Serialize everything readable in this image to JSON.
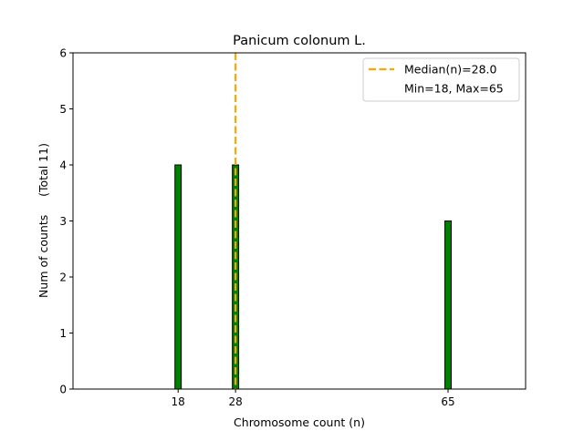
{
  "chart_data": {
    "type": "bar",
    "title": "Panicum colonum L.",
    "xlabel": "Chromosome count (n)",
    "ylabel": "Num of counts     (Total 11)",
    "x": [
      18,
      28,
      65
    ],
    "values": [
      4,
      4,
      3
    ],
    "xticks": [
      "18",
      "28",
      "65"
    ],
    "yticks": [
      "0",
      "1",
      "2",
      "3",
      "4",
      "5",
      "6"
    ],
    "xlim": [
      -0.3,
      78.5
    ],
    "ylim": [
      0,
      6
    ],
    "bar_width": 1.1,
    "median": 28.0,
    "legend": {
      "placement": "top-right",
      "entries": [
        "Median(n)=28.0",
        "Min=18, Max=65"
      ]
    },
    "colors": {
      "bar": "#008000",
      "bar_edge": "#000000",
      "median": "#ffa500"
    }
  }
}
